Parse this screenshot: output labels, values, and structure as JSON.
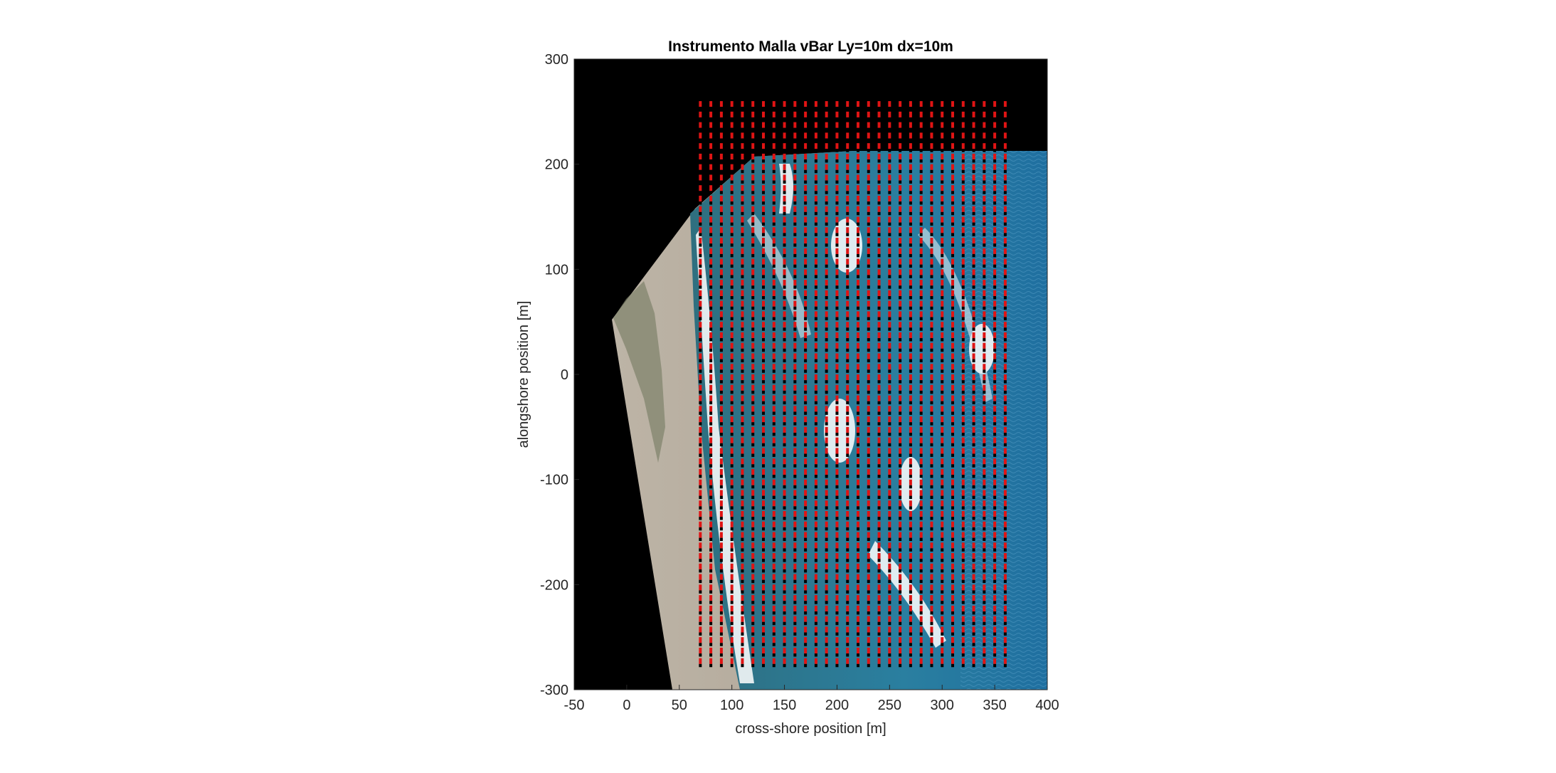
{
  "chart_data": {
    "type": "scatter",
    "title": "Instrumento Malla vBar  Ly=10m  dx=10m",
    "xlabel": "cross-shore position [m]",
    "ylabel": "alongshore position [m]",
    "xlim": [
      -50,
      400
    ],
    "ylim": [
      -300,
      300
    ],
    "xticks": [
      -50,
      0,
      50,
      100,
      150,
      200,
      250,
      300,
      350,
      400
    ],
    "yticks": [
      300,
      200,
      100,
      0,
      -100,
      -200,
      -300
    ],
    "grid": false,
    "legend": "none",
    "background_image": "orthorectified-beach-aerial-photo",
    "grid_points": {
      "x_start": 70,
      "x_end": 360,
      "x_step": 10,
      "y_start": -270,
      "y_end": 260,
      "y_spacing": 10,
      "segment_length_y": 10,
      "colors": [
        "#e01414",
        "#000000"
      ]
    }
  }
}
